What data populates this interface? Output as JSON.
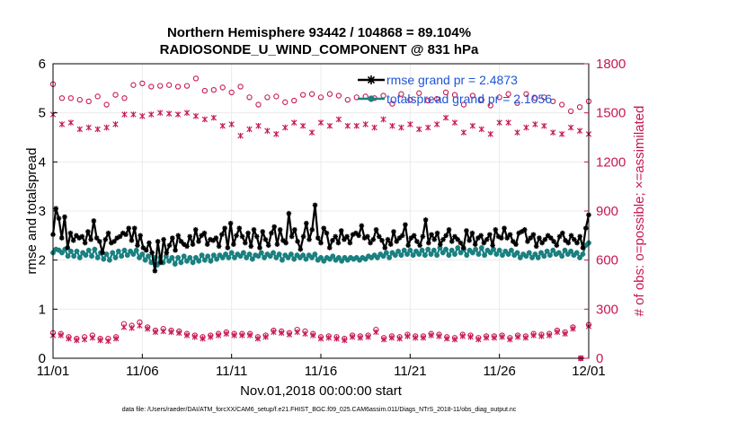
{
  "chart_data": {
    "type": "line",
    "title_line1": "Northern Hemisphere 93442 / 104868 = 89.104%",
    "title_line2": "RADIOSONDE_U_WIND_COMPONENT @ 831 hPa",
    "xlabel": "Nov.01,2018 00:00:00 start",
    "ylabel_left": "rmse and totalspread",
    "ylabel_right": "# of obs: o=possible; ×=assimilated",
    "footer": "data file: /Users/raeder/DAI/ATM_forcXX/CAM6_setup/f.e21.FHIST_BGC.f09_025.CAM6assim.011/Diags_NTrS_2018-11/obs_diag_output.nc",
    "x_ticks": [
      "11/01",
      "11/06",
      "11/11",
      "11/16",
      "11/21",
      "11/26",
      "12/01"
    ],
    "x_tick_days": [
      0,
      5,
      10,
      15,
      20,
      25,
      30
    ],
    "xlim": [
      0,
      30
    ],
    "ylim_left": [
      0,
      6
    ],
    "yticks_left": [
      "0",
      "1",
      "2",
      "3",
      "4",
      "5",
      "6"
    ],
    "ylim_right": [
      0,
      1800
    ],
    "yticks_right": [
      "0",
      "300",
      "600",
      "900",
      "1200",
      "1500",
      "1800"
    ],
    "colors": {
      "rmse": "#000000",
      "spread": "#1a8080",
      "obs": "#c8174f",
      "legend_text": "#1f55d6",
      "grid": "#ebebeb"
    },
    "series": [
      {
        "name": "rmse grand pr = 2.4873",
        "axis": "left",
        "marker": "star",
        "values": [
          2.52,
          3.05,
          2.85,
          2.45,
          2.88,
          2.25,
          2.55,
          2.4,
          2.5,
          2.45,
          2.48,
          2.35,
          2.58,
          2.42,
          2.8,
          2.45,
          2.38,
          2.15,
          2.42,
          2.55,
          2.35,
          2.38,
          2.45,
          2.48,
          2.55,
          2.52,
          2.65,
          2.4,
          2.65,
          2.3,
          2.5,
          2.25,
          2.2,
          2.35,
          2.15,
          1.78,
          2.38,
          1.95,
          2.42,
          2.15,
          2.3,
          2.45,
          2.2,
          2.5,
          2.38,
          2.32,
          2.28,
          2.48,
          2.32,
          2.62,
          2.38,
          2.5,
          2.55,
          2.32,
          2.42,
          2.4,
          2.45,
          2.28,
          2.52,
          2.65,
          2.25,
          2.75,
          2.32,
          2.5,
          2.65,
          2.48,
          2.35,
          2.55,
          2.28,
          2.62,
          2.48,
          2.25,
          2.58,
          2.42,
          2.3,
          2.55,
          2.68,
          2.32,
          2.62,
          2.4,
          2.35,
          2.95,
          2.48,
          2.62,
          2.38,
          2.22,
          2.48,
          2.75,
          2.42,
          2.62,
          3.12,
          2.45,
          2.35,
          2.65,
          2.55,
          2.25,
          2.4,
          2.48,
          2.35,
          2.6,
          2.42,
          2.48,
          2.35,
          2.52,
          2.55,
          2.5,
          2.7,
          2.45,
          2.48,
          2.35,
          2.42,
          2.62,
          2.48,
          2.4,
          2.25,
          2.42,
          2.32,
          2.58,
          2.38,
          2.45,
          2.5,
          2.72,
          2.3,
          2.45,
          2.5,
          2.38,
          2.3,
          2.48,
          2.82,
          2.35,
          2.52,
          2.42,
          2.55,
          2.32,
          2.42,
          2.5,
          2.62,
          2.38,
          2.48,
          2.42,
          2.35,
          2.25,
          2.6,
          2.4,
          2.55,
          2.32,
          2.45,
          2.5,
          2.35,
          2.42,
          2.52,
          2.3,
          2.62,
          2.48,
          2.45,
          2.65,
          2.45,
          2.52,
          2.38,
          2.32,
          2.55,
          2.58,
          2.62,
          2.38,
          2.45,
          2.52,
          2.28,
          2.45,
          2.35,
          2.42,
          2.5,
          2.45,
          2.38,
          2.3,
          2.48,
          2.55,
          2.4,
          2.35,
          2.5,
          2.42,
          2.35,
          2.48,
          2.25,
          2.65,
          2.92
        ]
      },
      {
        "name": "totalspread grand pr = 2.1056",
        "axis": "left",
        "marker": "circle",
        "values": [
          2.15,
          2.22,
          2.2,
          2.15,
          2.22,
          2.08,
          2.18,
          2.08,
          2.18,
          2.05,
          2.15,
          2.1,
          2.2,
          2.08,
          2.22,
          2.05,
          2.15,
          2.02,
          2.12,
          2.0,
          2.15,
          2.05,
          2.18,
          2.08,
          2.2,
          2.1,
          2.18,
          2.12,
          2.2,
          2.05,
          2.12,
          2.0,
          2.08,
          1.95,
          2.05,
          1.9,
          2.05,
          1.95,
          2.08,
          1.98,
          2.05,
          1.92,
          2.05,
          1.95,
          2.08,
          1.98,
          2.05,
          1.95,
          2.05,
          1.98,
          2.1,
          2.0,
          2.08,
          1.98,
          2.1,
          2.02,
          2.1,
          2.05,
          2.12,
          2.05,
          2.15,
          2.05,
          2.12,
          2.08,
          2.15,
          2.05,
          2.12,
          2.02,
          2.1,
          2.08,
          2.15,
          2.05,
          2.12,
          2.08,
          2.15,
          2.05,
          2.12,
          2.0,
          2.1,
          2.05,
          2.12,
          2.02,
          2.1,
          2.05,
          2.1,
          2.02,
          2.1,
          2.05,
          2.12,
          2.0,
          2.05,
          1.98,
          2.05,
          2.02,
          2.08,
          2.0,
          2.05,
          1.98,
          2.05,
          2.0,
          2.05,
          2.02,
          2.05,
          2.0,
          2.05,
          2.02,
          2.08,
          2.05,
          2.1,
          2.05,
          2.12,
          2.08,
          2.15,
          2.05,
          2.15,
          2.1,
          2.18,
          2.1,
          2.2,
          2.12,
          2.2,
          2.1,
          2.18,
          2.12,
          2.2,
          2.1,
          2.22,
          2.12,
          2.2,
          2.1,
          2.25,
          2.15,
          2.22,
          2.1,
          2.2,
          2.12,
          2.25,
          2.15,
          2.22,
          2.1,
          2.2,
          2.15,
          2.22,
          2.12,
          2.25,
          2.1,
          2.2,
          2.15,
          2.22,
          2.12,
          2.2,
          2.1,
          2.18,
          2.12,
          2.2,
          2.1,
          2.15,
          2.05,
          2.12,
          2.08,
          2.15,
          2.05,
          2.12,
          2.05,
          2.15,
          2.08,
          2.18,
          2.1,
          2.2,
          2.12,
          2.15,
          2.08,
          2.2,
          2.12,
          2.18,
          2.1,
          2.15,
          2.05,
          2.12,
          2.3,
          2.35
        ]
      },
      {
        "name": "possible",
        "axis": "right",
        "marker": "o",
        "values": [
          1675,
          1590,
          1590,
          1580,
          1570,
          1600,
          1550,
          1610,
          1590,
          1670,
          1680,
          1660,
          1665,
          1670,
          1660,
          1665,
          1710,
          1635,
          1640,
          1655,
          1625,
          1660,
          1595,
          1550,
          1595,
          1600,
          1565,
          1575,
          1610,
          1615,
          1595,
          1615,
          1605,
          1580,
          1595,
          1600,
          1590,
          1605,
          1555,
          1615,
          1580,
          1620,
          1575,
          1585,
          1625,
          1610,
          1550,
          1605,
          1580,
          1545,
          1595,
          1615,
          1560,
          1615,
          1590,
          1595,
          1570,
          1550,
          1510,
          1535,
          1570
        ]
      },
      {
        "name": "assimilated",
        "axis": "right",
        "marker": "x",
        "values": [
          1490,
          1430,
          1440,
          1400,
          1410,
          1400,
          1410,
          1430,
          1490,
          1490,
          1480,
          1490,
          1500,
          1495,
          1490,
          1500,
          1480,
          1460,
          1470,
          1420,
          1430,
          1360,
          1400,
          1420,
          1390,
          1370,
          1410,
          1440,
          1420,
          1380,
          1440,
          1420,
          1460,
          1420,
          1420,
          1430,
          1410,
          1460,
          1420,
          1410,
          1430,
          1400,
          1410,
          1430,
          1470,
          1440,
          1380,
          1420,
          1400,
          1370,
          1440,
          1440,
          1380,
          1410,
          1430,
          1420,
          1380,
          1370,
          1410,
          1390,
          1370
        ]
      },
      {
        "name": "possible_bottom",
        "axis": "right",
        "marker": "o",
        "values": [
          155,
          150,
          130,
          120,
          130,
          140,
          120,
          120,
          130,
          210,
          200,
          220,
          190,
          170,
          180,
          170,
          165,
          150,
          140,
          130,
          140,
          150,
          160,
          150,
          150,
          150,
          130,
          140,
          170,
          165,
          155,
          175,
          165,
          150,
          130,
          135,
          130,
          120,
          140,
          135,
          140,
          175,
          125,
          135,
          130,
          145,
          135,
          135,
          150,
          145,
          130,
          125,
          145,
          140,
          125,
          135,
          135,
          140,
          125,
          140,
          135,
          150,
          145,
          150,
          170,
          160,
          190,
          0,
          205
        ]
      },
      {
        "name": "assimilated_bottom",
        "axis": "right",
        "marker": "x",
        "values": [
          140,
          140,
          120,
          110,
          115,
          125,
          110,
          105,
          120,
          190,
          185,
          200,
          180,
          160,
          165,
          160,
          155,
          140,
          130,
          120,
          130,
          140,
          150,
          140,
          140,
          140,
          120,
          130,
          160,
          155,
          145,
          160,
          150,
          140,
          120,
          125,
          120,
          110,
          130,
          125,
          130,
          160,
          115,
          125,
          120,
          135,
          125,
          125,
          140,
          135,
          120,
          115,
          135,
          130,
          115,
          125,
          125,
          130,
          115,
          130,
          125,
          140,
          135,
          140,
          160,
          150,
          180,
          0,
          195
        ]
      }
    ]
  }
}
